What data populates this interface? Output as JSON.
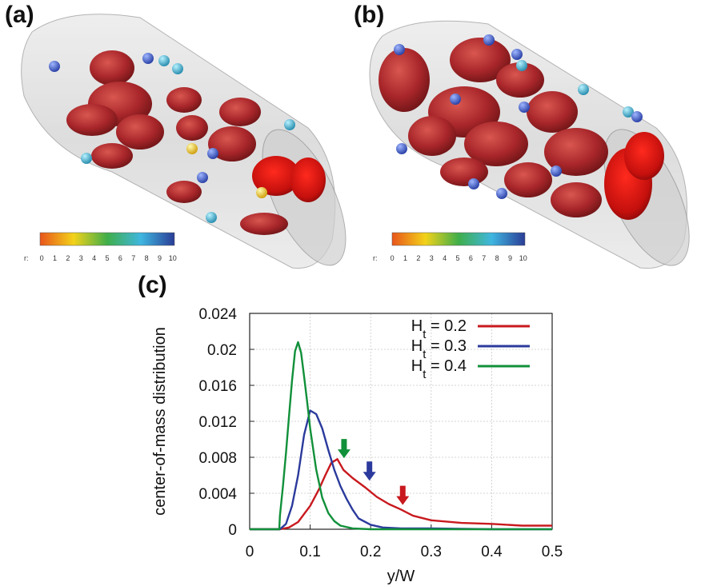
{
  "panels": {
    "a": {
      "label": "(a)",
      "colorbar": {
        "prefix": "r:",
        "ticks": [
          "0",
          "1",
          "2",
          "3",
          "4",
          "5",
          "6",
          "7",
          "8",
          "9",
          "10"
        ]
      }
    },
    "b": {
      "label": "(b)",
      "colorbar": {
        "prefix": "r:",
        "ticks": [
          "0",
          "1",
          "2",
          "3",
          "4",
          "5",
          "6",
          "7",
          "8",
          "9",
          "10"
        ]
      }
    },
    "c": {
      "label": "(c)"
    }
  },
  "colors": {
    "red": "#c8191e",
    "blue": "#2b3a9c",
    "green": "#11903a",
    "cell": "#b3302c",
    "tube": "#d6d6d6"
  },
  "chart_data": {
    "type": "line",
    "xlabel": "y/W",
    "ylabel": "center-of-mass distribution",
    "xlim": [
      0,
      0.5
    ],
    "ylim": [
      0,
      0.024
    ],
    "xticks": [
      "0",
      "0.1",
      "0.2",
      "0.3",
      "0.4",
      "0.5"
    ],
    "yticks": [
      "0",
      "0.004",
      "0.008",
      "0.012",
      "0.016",
      "0.02",
      "0.024"
    ],
    "grid": true,
    "legend": "top-right",
    "series": [
      {
        "name": "H_t = 0.2",
        "sub": "t",
        "prefix": "H",
        "suffix": " = 0.2",
        "color": "#c8191e",
        "x": [
          0,
          0.05,
          0.065,
          0.08,
          0.1,
          0.115,
          0.125,
          0.135,
          0.145,
          0.155,
          0.17,
          0.19,
          0.21,
          0.23,
          0.25,
          0.27,
          0.3,
          0.35,
          0.4,
          0.45,
          0.5
        ],
        "y": [
          0,
          0,
          0.0002,
          0.0008,
          0.0026,
          0.0045,
          0.006,
          0.0074,
          0.0078,
          0.0066,
          0.0057,
          0.0047,
          0.0036,
          0.0028,
          0.0022,
          0.0015,
          0.001,
          0.0007,
          0.0006,
          0.0004,
          0.0004
        ]
      },
      {
        "name": "H_t = 0.3",
        "sub": "t",
        "prefix": "H",
        "suffix": " = 0.3",
        "color": "#2b3a9c",
        "x": [
          0,
          0.05,
          0.06,
          0.07,
          0.08,
          0.09,
          0.1,
          0.11,
          0.12,
          0.13,
          0.14,
          0.15,
          0.16,
          0.17,
          0.18,
          0.2,
          0.22,
          0.25,
          0.3,
          0.4,
          0.5
        ],
        "y": [
          0,
          0,
          0.0006,
          0.0026,
          0.006,
          0.0105,
          0.0132,
          0.0128,
          0.0112,
          0.0088,
          0.0066,
          0.0048,
          0.0034,
          0.0022,
          0.0012,
          0.0005,
          0.0002,
          0.0001,
          0.0001,
          0,
          0
        ]
      },
      {
        "name": "H_t = 0.4",
        "sub": "t",
        "prefix": "H",
        "suffix": " = 0.4",
        "color": "#11903a",
        "x": [
          0,
          0.049,
          0.05,
          0.055,
          0.06,
          0.065,
          0.07,
          0.075,
          0.08,
          0.085,
          0.09,
          0.095,
          0.1,
          0.11,
          0.12,
          0.13,
          0.14,
          0.15,
          0.17,
          0.2,
          0.3,
          0.5
        ],
        "y": [
          0,
          0,
          0.0015,
          0.0048,
          0.0085,
          0.0125,
          0.0165,
          0.0198,
          0.0208,
          0.0196,
          0.017,
          0.0142,
          0.0112,
          0.0066,
          0.0035,
          0.0018,
          0.0009,
          0.0004,
          0.0001,
          0,
          0,
          0
        ]
      }
    ],
    "arrows": [
      {
        "series": "H_t = 0.4",
        "x": 0.156,
        "y_tip": 0.0079,
        "color": "#11903a"
      },
      {
        "series": "H_t = 0.3",
        "x": 0.198,
        "y_tip": 0.0054,
        "color": "#2b3a9c"
      },
      {
        "series": "H_t = 0.2",
        "x": 0.253,
        "y_tip": 0.0027,
        "color": "#c8191e"
      }
    ]
  }
}
